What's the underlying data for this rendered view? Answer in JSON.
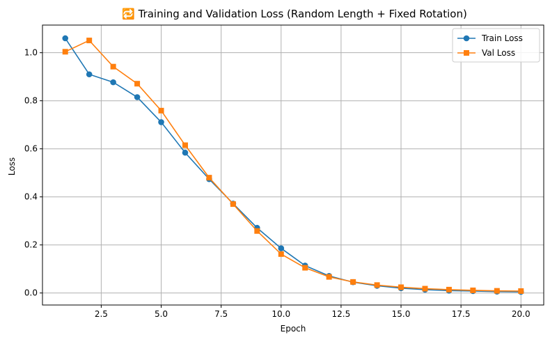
{
  "chart_data": {
    "type": "line",
    "title": "🔁 Training and Validation Loss (Random Length + Fixed Rotation)",
    "xlabel": "Epoch",
    "ylabel": "Loss",
    "xlim": [
      0.05,
      20.95
    ],
    "ylim": [
      -0.05,
      1.115
    ],
    "xticks": [
      2.5,
      5.0,
      7.5,
      10.0,
      12.5,
      15.0,
      17.5,
      20.0
    ],
    "xtick_labels": [
      "2.5",
      "5.0",
      "7.5",
      "10.0",
      "12.5",
      "15.0",
      "17.5",
      "20.0"
    ],
    "yticks": [
      0.0,
      0.2,
      0.4,
      0.6,
      0.8,
      1.0
    ],
    "ytick_labels": [
      "0.0",
      "0.2",
      "0.4",
      "0.6",
      "0.8",
      "1.0"
    ],
    "grid": true,
    "legend_position": "top-right",
    "x": [
      1,
      2,
      3,
      4,
      5,
      6,
      7,
      8,
      9,
      10,
      11,
      12,
      13,
      14,
      15,
      16,
      17,
      18,
      19,
      20
    ],
    "series": [
      {
        "name": "Train Loss",
        "color": "#1f77b4",
        "marker": "circle",
        "values": [
          1.06,
          0.91,
          0.877,
          0.815,
          0.711,
          0.584,
          0.474,
          0.372,
          0.271,
          0.186,
          0.114,
          0.071,
          0.045,
          0.03,
          0.02,
          0.014,
          0.01,
          0.008,
          0.006,
          0.005
        ]
      },
      {
        "name": "Val Loss",
        "color": "#ff7f0e",
        "marker": "square",
        "values": [
          1.004,
          1.051,
          0.942,
          0.871,
          0.759,
          0.615,
          0.48,
          0.37,
          0.258,
          0.162,
          0.105,
          0.067,
          0.046,
          0.033,
          0.024,
          0.018,
          0.014,
          0.011,
          0.009,
          0.008
        ]
      }
    ]
  }
}
